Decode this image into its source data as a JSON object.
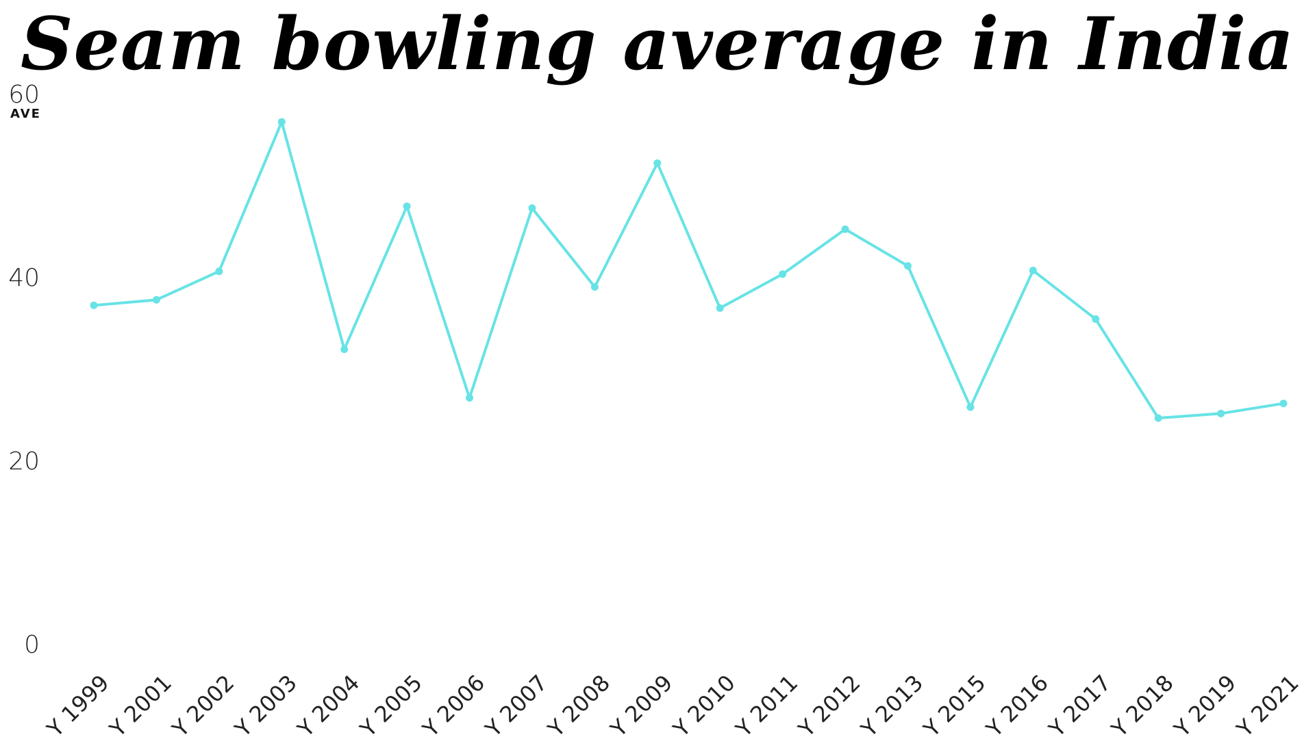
{
  "chart_data": {
    "type": "line",
    "title": "Seam bowling average in India",
    "ylabel": "AVE",
    "xlabel": "",
    "ylim": [
      0,
      60
    ],
    "yticks": [
      0,
      20,
      40,
      60
    ],
    "grid": false,
    "color": "#67e3e6",
    "categories": [
      "Y 1999",
      "Y 2001",
      "Y 2002",
      "Y 2003",
      "Y 2004",
      "Y 2005",
      "Y 2006",
      "Y 2007",
      "Y 2008",
      "Y 2009",
      "Y 2010",
      "Y 2011",
      "Y 2012",
      "Y 2013",
      "Y 2015",
      "Y 2016",
      "Y 2017",
      "Y 2018",
      "Y 2019",
      "Y 2021"
    ],
    "values": [
      37.0,
      37.6,
      40.7,
      57.0,
      32.2,
      47.8,
      26.9,
      47.6,
      39.0,
      52.5,
      36.7,
      40.4,
      45.3,
      41.3,
      25.9,
      40.8,
      35.5,
      24.7,
      25.2,
      26.3
    ]
  }
}
